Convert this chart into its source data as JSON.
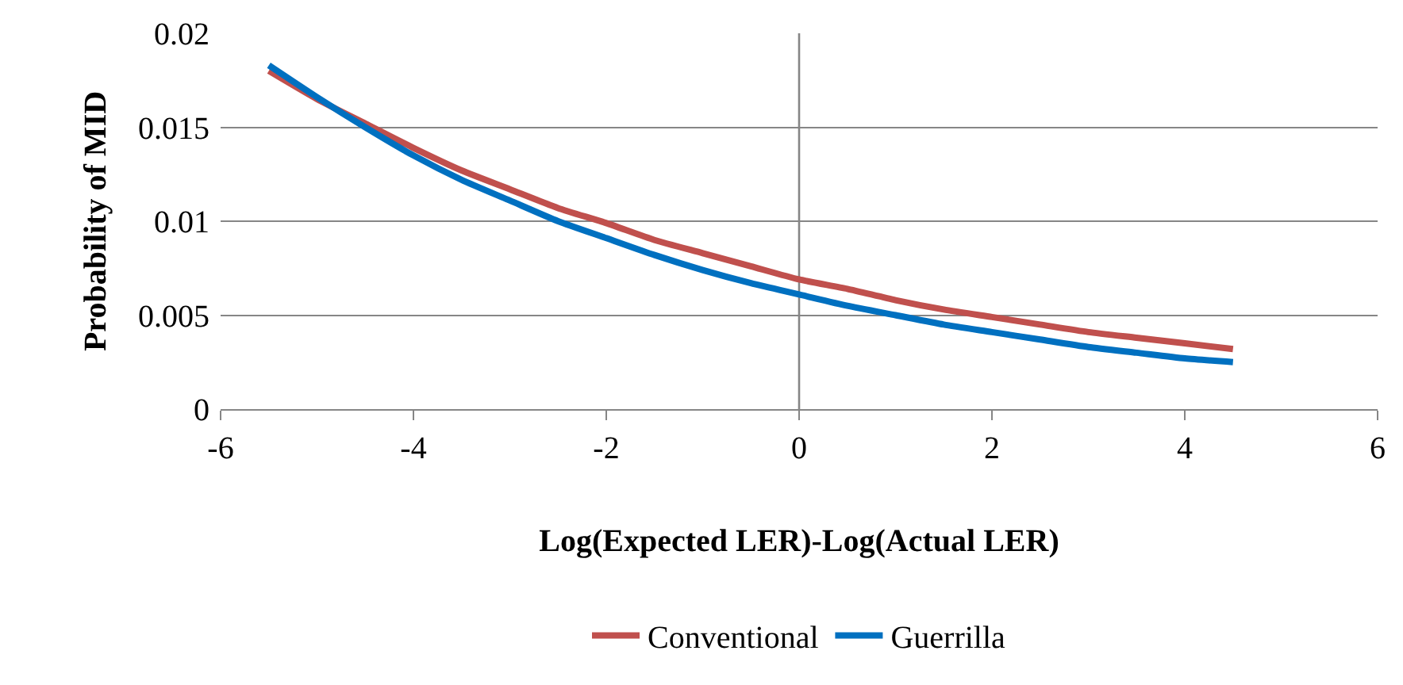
{
  "chart_data": {
    "type": "line",
    "xlabel": "Log(Expected LER)-Log(Actual LER)",
    "ylabel": "Probability of MID",
    "x": [
      -5.5,
      -5,
      -4.5,
      -4,
      -3.5,
      -3,
      -2.5,
      -2,
      -1.5,
      -1,
      -0.5,
      0,
      0.5,
      1,
      1.5,
      2,
      2.5,
      3,
      3.5,
      4,
      4.5
    ],
    "series": [
      {
        "name": "Conventional",
        "color": "#c0504d",
        "values": [
          0.018,
          0.0165,
          0.0152,
          0.0139,
          0.0127,
          0.0117,
          0.0107,
          0.0099,
          0.009,
          0.0083,
          0.0076,
          0.0069,
          0.0064,
          0.0058,
          0.0053,
          0.0049,
          0.0045,
          0.0041,
          0.0038,
          0.0035,
          0.0032
        ]
      },
      {
        "name": "Guerrilla",
        "color": "#0070c0",
        "values": [
          0.0183,
          0.0166,
          0.015,
          0.0135,
          0.0122,
          0.0111,
          0.01,
          0.0091,
          0.0082,
          0.0074,
          0.0067,
          0.0061,
          0.0055,
          0.005,
          0.0045,
          0.0041,
          0.0037,
          0.0033,
          0.003,
          0.0027,
          0.0025
        ]
      }
    ],
    "xlim": [
      -6,
      6
    ],
    "xticks": [
      -6,
      -4,
      -2,
      0,
      2,
      4,
      6
    ],
    "ylim": [
      0,
      0.02
    ],
    "yticks": [
      0,
      0.005,
      0.01,
      0.015,
      0.02
    ],
    "ref_lines": [
      {
        "axis": "x",
        "value": 0,
        "color": "#868686"
      }
    ],
    "grid": "y",
    "legend": "bottom",
    "marker": "none",
    "line_style": "solid"
  }
}
